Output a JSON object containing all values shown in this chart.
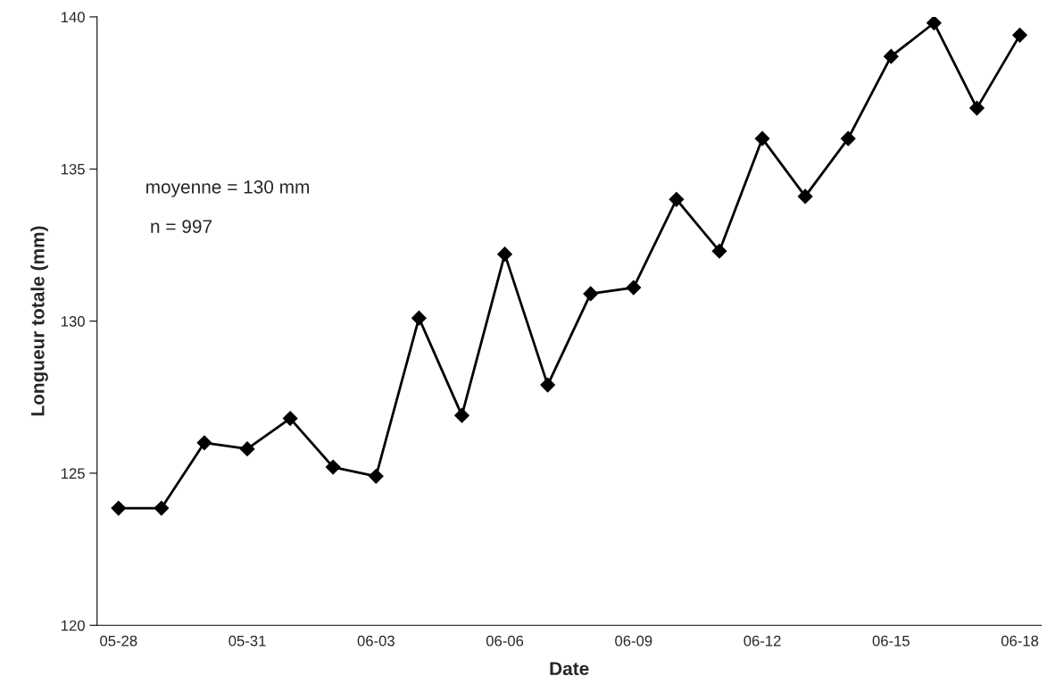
{
  "chart_data": {
    "type": "line",
    "xlabel": "Date",
    "ylabel": "Longueur totale (mm)",
    "categories": [
      "05-28",
      null,
      null,
      "05-31",
      null,
      null,
      "06-03",
      null,
      null,
      "06-06",
      null,
      null,
      "06-09",
      null,
      null,
      "06-12",
      null,
      null,
      "06-15",
      null,
      null,
      "06-18"
    ],
    "series": [
      {
        "color": "#000000",
        "values": [
          123.85,
          123.85,
          126.0,
          125.8,
          126.8,
          125.2,
          124.9,
          130.1,
          126.9,
          132.2,
          127.9,
          130.9,
          131.1,
          134.0,
          132.3,
          136.0,
          134.1,
          136.0,
          138.7,
          139.8,
          137.0,
          139.4
        ]
      }
    ],
    "ylim": [
      120,
      140
    ],
    "yticks": [
      120,
      125,
      130,
      135,
      140
    ],
    "grid": false,
    "legend": false,
    "marker": "diamond",
    "line_style": "solid",
    "annotations": [
      "moyenne = 130 mm",
      "n = 997"
    ]
  }
}
